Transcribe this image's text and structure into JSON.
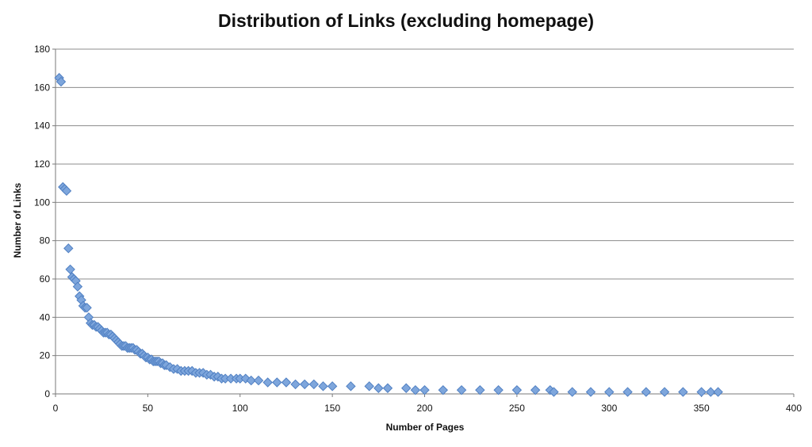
{
  "chart_data": {
    "type": "scatter",
    "title": "Distribution of Links (excluding homepage)",
    "xlabel": "Number of Pages",
    "ylabel": "Number of Links",
    "xlim": [
      0,
      400
    ],
    "ylim": [
      0,
      180
    ],
    "xticks": [
      0,
      50,
      100,
      150,
      200,
      250,
      300,
      350,
      400
    ],
    "yticks": [
      0,
      20,
      40,
      60,
      80,
      100,
      120,
      140,
      160,
      180
    ],
    "grid": "horizontal",
    "legend": "none",
    "marker": "diamond",
    "colors": {
      "marker_fill": "#7ea6dc",
      "marker_stroke": "#4f7fc2",
      "grid": "#8c8c8c"
    },
    "series": [
      {
        "points": [
          [
            2,
            165
          ],
          [
            3,
            163
          ],
          [
            4,
            108
          ],
          [
            5,
            107
          ],
          [
            6,
            106
          ],
          [
            7,
            76
          ],
          [
            8,
            65
          ],
          [
            9,
            61
          ],
          [
            10,
            60
          ],
          [
            11,
            59
          ],
          [
            12,
            56
          ],
          [
            13,
            51
          ],
          [
            14,
            49
          ],
          [
            15,
            46
          ],
          [
            16,
            45
          ],
          [
            17,
            45
          ],
          [
            18,
            40
          ],
          [
            19,
            37
          ],
          [
            20,
            36
          ],
          [
            21,
            36
          ],
          [
            22,
            35
          ],
          [
            23,
            35
          ],
          [
            24,
            34
          ],
          [
            25,
            33
          ],
          [
            26,
            32
          ],
          [
            27,
            32
          ],
          [
            28,
            32
          ],
          [
            29,
            31
          ],
          [
            30,
            31
          ],
          [
            31,
            30
          ],
          [
            32,
            29
          ],
          [
            33,
            28
          ],
          [
            34,
            27
          ],
          [
            35,
            26
          ],
          [
            36,
            25
          ],
          [
            37,
            25
          ],
          [
            38,
            25
          ],
          [
            39,
            24
          ],
          [
            40,
            24
          ],
          [
            41,
            24
          ],
          [
            42,
            24
          ],
          [
            43,
            23
          ],
          [
            44,
            23
          ],
          [
            45,
            22
          ],
          [
            46,
            21
          ],
          [
            47,
            21
          ],
          [
            48,
            20
          ],
          [
            49,
            19
          ],
          [
            50,
            19
          ],
          [
            51,
            18
          ],
          [
            52,
            18
          ],
          [
            53,
            17
          ],
          [
            54,
            17
          ],
          [
            55,
            17
          ],
          [
            56,
            17
          ],
          [
            57,
            16
          ],
          [
            58,
            16
          ],
          [
            59,
            15
          ],
          [
            60,
            15
          ],
          [
            62,
            14
          ],
          [
            64,
            13
          ],
          [
            66,
            13
          ],
          [
            68,
            12
          ],
          [
            70,
            12
          ],
          [
            72,
            12
          ],
          [
            74,
            12
          ],
          [
            76,
            11
          ],
          [
            78,
            11
          ],
          [
            80,
            11
          ],
          [
            82,
            10
          ],
          [
            84,
            10
          ],
          [
            86,
            9
          ],
          [
            88,
            9
          ],
          [
            90,
            8
          ],
          [
            92,
            8
          ],
          [
            95,
            8
          ],
          [
            98,
            8
          ],
          [
            100,
            8
          ],
          [
            103,
            8
          ],
          [
            106,
            7
          ],
          [
            110,
            7
          ],
          [
            115,
            6
          ],
          [
            120,
            6
          ],
          [
            125,
            6
          ],
          [
            130,
            5
          ],
          [
            135,
            5
          ],
          [
            140,
            5
          ],
          [
            145,
            4
          ],
          [
            150,
            4
          ],
          [
            160,
            4
          ],
          [
            170,
            4
          ],
          [
            175,
            3
          ],
          [
            180,
            3
          ],
          [
            190,
            3
          ],
          [
            195,
            2
          ],
          [
            200,
            2
          ],
          [
            210,
            2
          ],
          [
            220,
            2
          ],
          [
            230,
            2
          ],
          [
            240,
            2
          ],
          [
            250,
            2
          ],
          [
            260,
            2
          ],
          [
            268,
            2
          ],
          [
            270,
            1
          ],
          [
            280,
            1
          ],
          [
            290,
            1
          ],
          [
            300,
            1
          ],
          [
            310,
            1
          ],
          [
            320,
            1
          ],
          [
            330,
            1
          ],
          [
            340,
            1
          ],
          [
            350,
            1
          ],
          [
            355,
            1
          ],
          [
            359,
            1
          ]
        ]
      }
    ]
  }
}
